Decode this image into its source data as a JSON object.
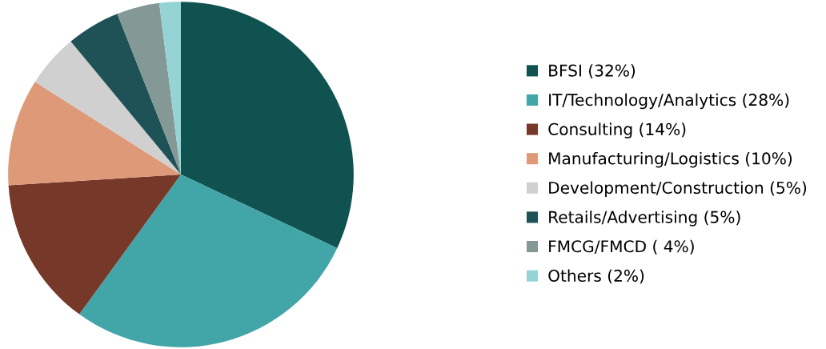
{
  "chart_data": {
    "type": "pie",
    "categories": [
      "BFSI (32%)",
      "IT/Technology/Analytics (28%)",
      "Consulting (14%)",
      "Manufacturing/Logistics (10%)",
      "Development/Construction (5%)",
      "Retails/Advertising (5%)",
      "FMCG/FMCD ( 4%)",
      "Others (2%)"
    ],
    "values": [
      32,
      28,
      14,
      10,
      5,
      5,
      4,
      2
    ],
    "colors": [
      "#10524f",
      "#42a5a8",
      "#763828",
      "#de9a78",
      "#d0d0d0",
      "#1f5257",
      "#849896",
      "#96d3d5"
    ],
    "legend": "right"
  }
}
